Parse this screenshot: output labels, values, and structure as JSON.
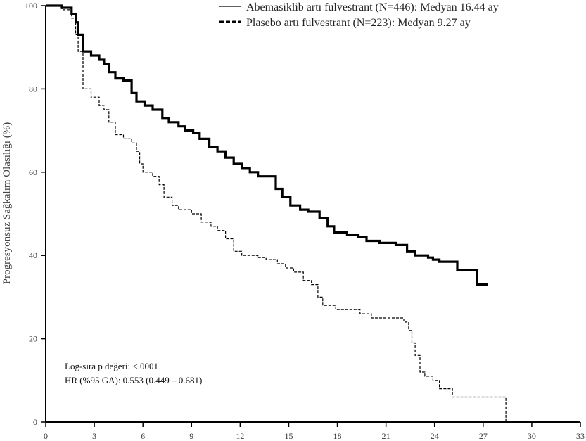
{
  "chart_data": {
    "type": "line",
    "title": "",
    "xlabel": "",
    "ylabel": "Progresyonsuz Sağkalım Olasılığı (%)",
    "xlim": [
      0,
      33
    ],
    "ylim": [
      0,
      100
    ],
    "x_ticks": [
      0,
      3,
      6,
      9,
      12,
      15,
      18,
      21,
      24,
      27,
      30,
      33
    ],
    "x_tick_labels": [
      "0",
      "3",
      "6",
      "9",
      "12",
      "15",
      "18",
      "21",
      "24",
      "27",
      "30",
      "33"
    ],
    "y_ticks": [
      0,
      20,
      40,
      60,
      80,
      100
    ],
    "y_tick_labels": [
      "0",
      "20",
      "40",
      "60",
      "80",
      "100"
    ],
    "legend_position": "top-right",
    "series": [
      {
        "name": "Abemasiklib artı fulvestrant (N=446): Medyan 16.44 ay",
        "style": "solid",
        "color": "#000000",
        "x": [
          0,
          1.0,
          1.6,
          1.85,
          2.0,
          2.3,
          2.8,
          3.3,
          3.6,
          3.9,
          4.3,
          4.8,
          5.3,
          5.6,
          6.1,
          6.6,
          7.2,
          7.6,
          8.2,
          8.6,
          9.1,
          9.5,
          10.1,
          10.6,
          11.1,
          11.6,
          12.1,
          12.6,
          13.1,
          13.9,
          14.2,
          14.6,
          15.1,
          15.7,
          16.2,
          16.9,
          17.4,
          17.8,
          18.6,
          19.3,
          19.8,
          20.6,
          21.6,
          22.3,
          22.8,
          23.6,
          23.9,
          24.3,
          25.4,
          26.2,
          26.6,
          27.3
        ],
        "y": [
          100,
          99.5,
          98,
          96,
          93,
          89,
          88,
          87,
          86,
          84,
          82.5,
          82,
          79,
          77,
          76,
          75,
          73,
          72,
          71,
          70,
          69.5,
          68,
          66,
          65,
          63.5,
          62,
          61,
          60,
          59,
          59,
          56,
          54,
          52,
          51,
          50.5,
          49,
          47,
          45.5,
          45,
          44.5,
          43.5,
          43,
          42.5,
          41,
          40,
          39.5,
          39,
          38.5,
          36.5,
          36.5,
          33,
          33
        ]
      },
      {
        "name": "Plasebo artı fulvestrant (N=223): Medyan 9.27 ay",
        "style": "dashed",
        "color": "#000000",
        "x": [
          0,
          1.0,
          1.6,
          1.85,
          2.0,
          2.3,
          2.8,
          3.3,
          3.6,
          3.9,
          4.3,
          4.8,
          5.3,
          5.6,
          5.8,
          6.0,
          6.6,
          7.0,
          7.3,
          7.8,
          8.2,
          9.0,
          9.6,
          10.2,
          10.6,
          11.1,
          11.6,
          12.1,
          12.6,
          13.1,
          13.6,
          14.3,
          14.8,
          15.3,
          15.9,
          16.4,
          16.8,
          17.1,
          17.9,
          18.6,
          19.4,
          20.1,
          21.1,
          22.1,
          22.4,
          22.6,
          22.8,
          23.1,
          23.4,
          23.9,
          24.3,
          25.1,
          26.1,
          27.6,
          28.4
        ],
        "y": [
          100,
          99,
          97,
          93,
          89,
          80,
          78,
          76,
          75,
          72,
          69,
          68,
          67,
          65,
          62,
          60,
          59,
          57,
          54,
          52,
          51,
          50,
          48,
          47,
          46,
          44,
          41,
          40,
          40,
          39.5,
          39,
          38,
          37,
          36,
          34,
          33,
          30,
          28,
          27,
          27,
          26,
          25,
          25,
          24,
          22,
          19,
          16,
          12,
          11,
          10,
          8,
          6,
          6,
          6,
          0
        ]
      }
    ],
    "annotations": [
      "Log-sıra p değeri: <.0001",
      "HR (%95 GA): 0.553 (0.449 – 0.681)"
    ]
  }
}
